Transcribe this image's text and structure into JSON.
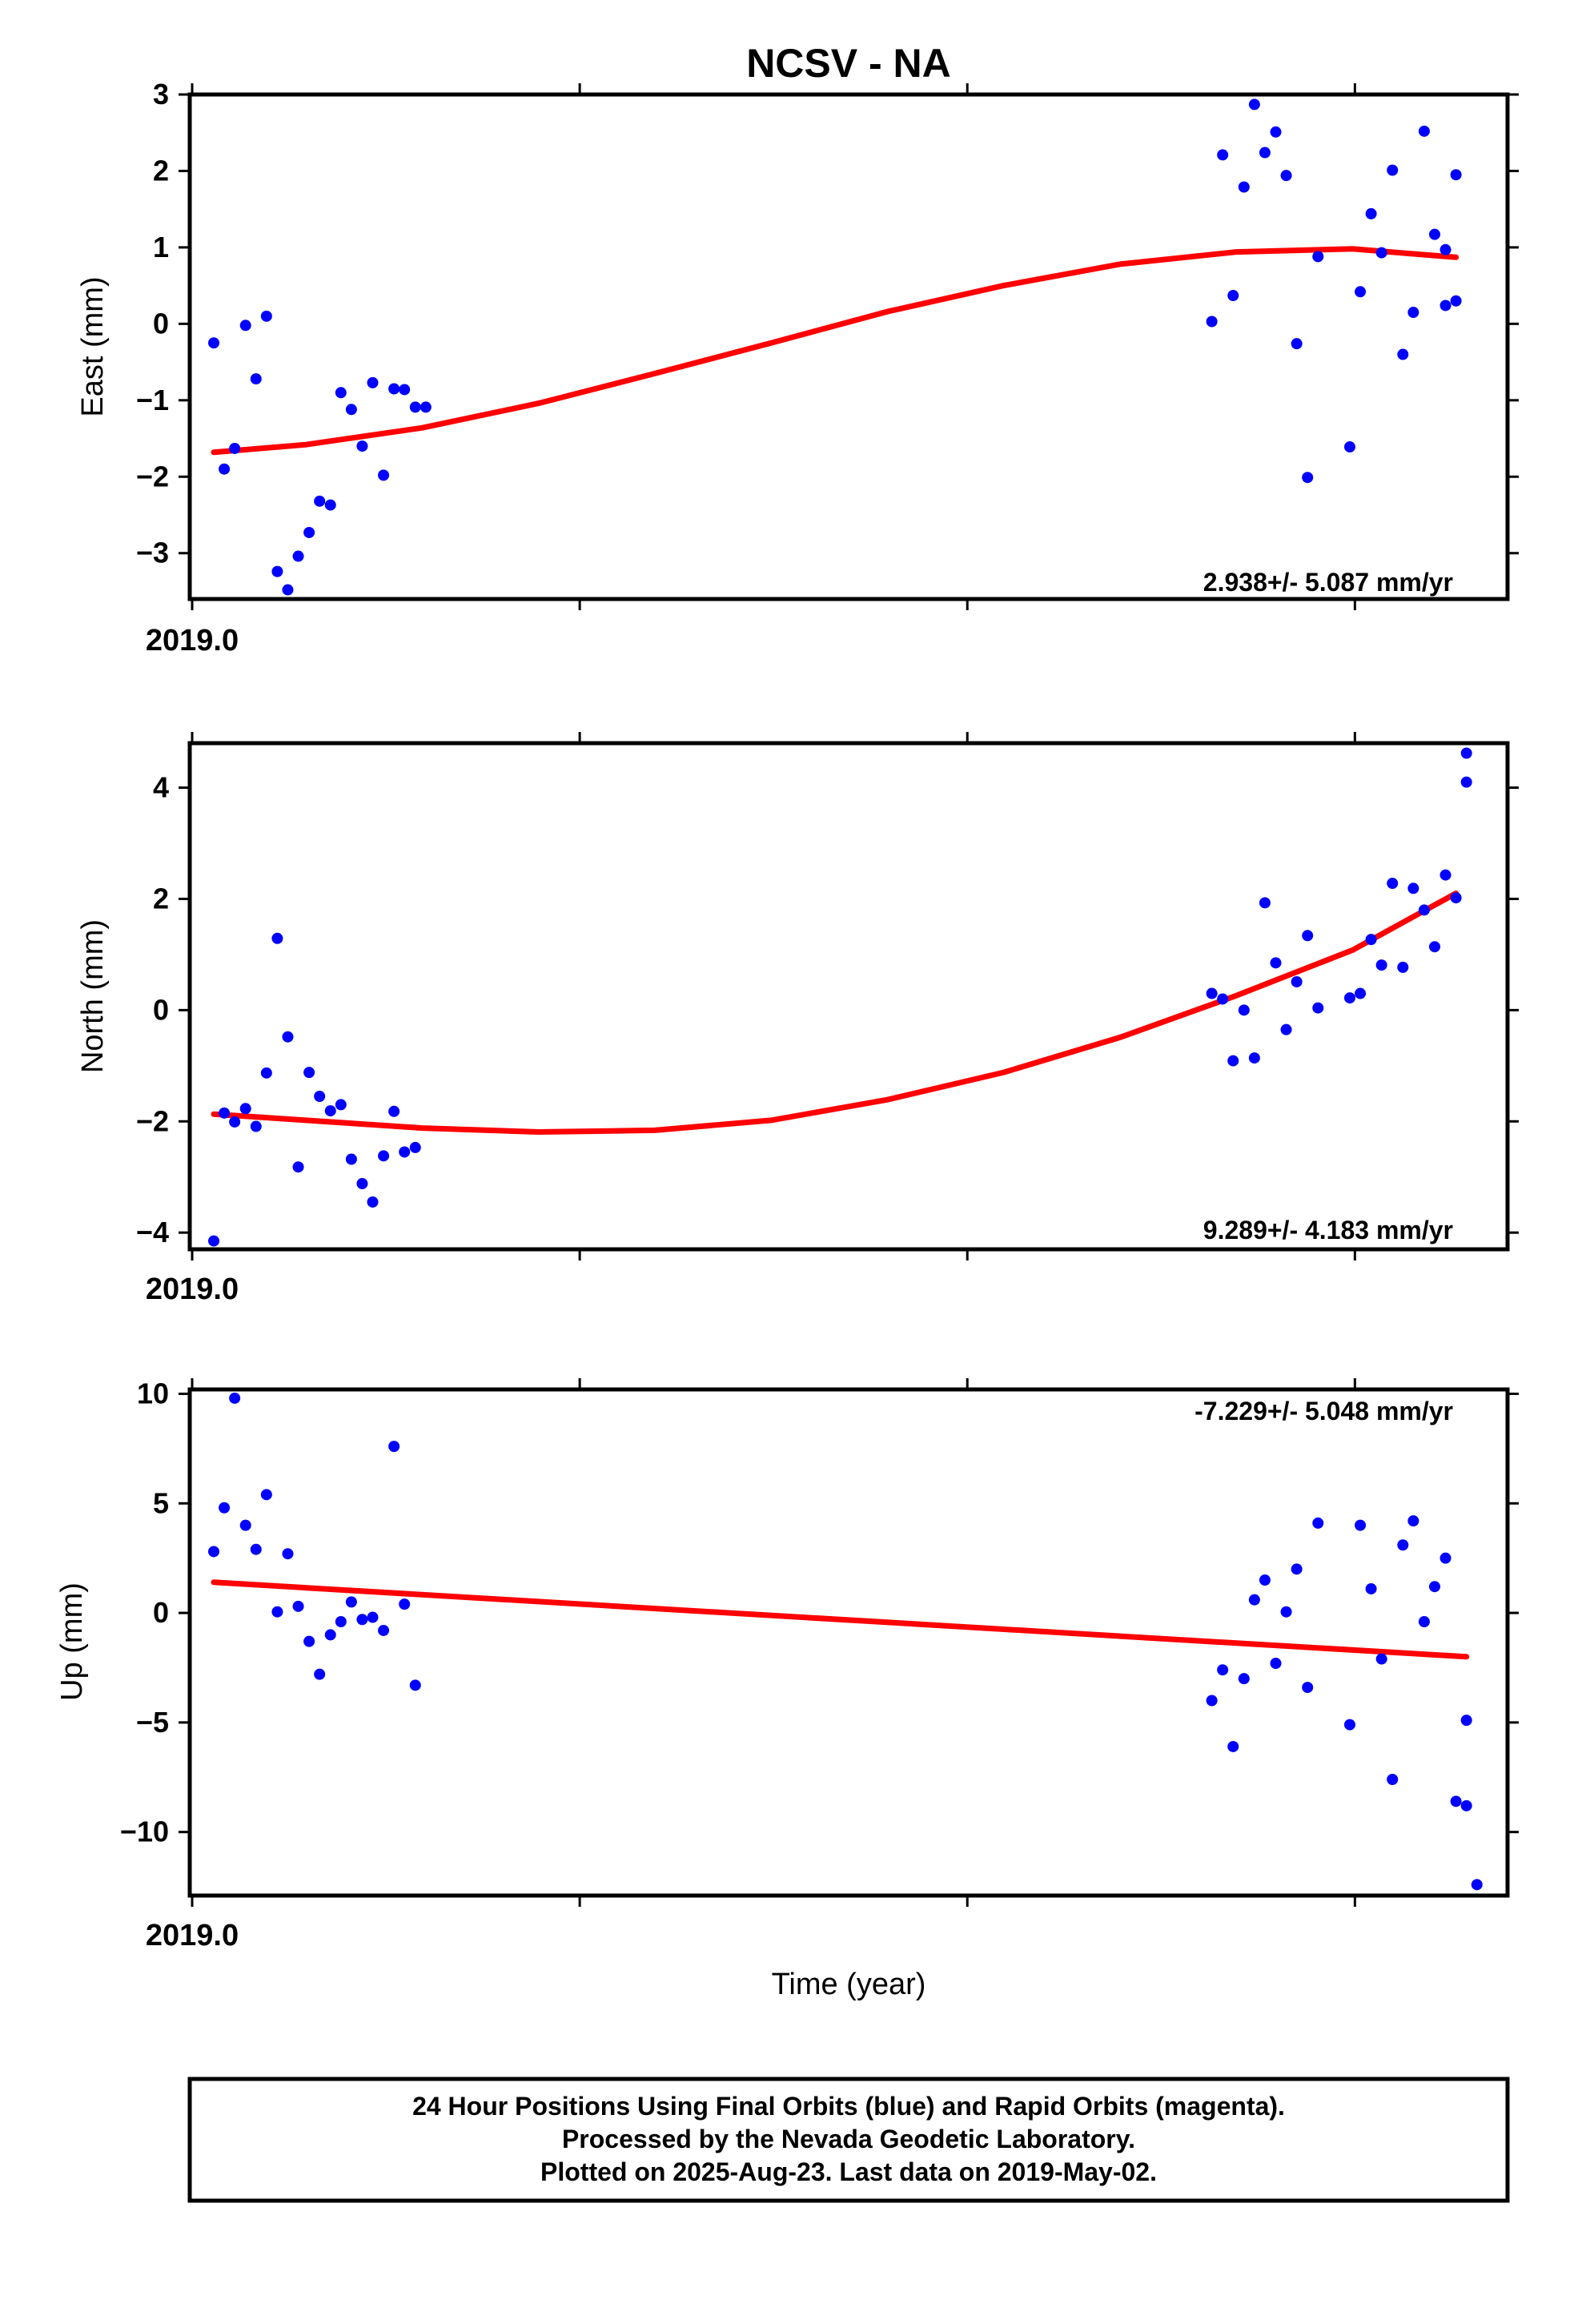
{
  "chart_data": [
    {
      "type": "scatter",
      "panel": "east",
      "title": "NCSV - NA",
      "ylabel": "East (mm)",
      "xlabel": "",
      "ylim": [
        -3.6,
        3.0
      ],
      "yticks": [
        -3,
        -2,
        -1,
        0,
        1,
        2,
        3
      ],
      "xlim": [
        2019.0,
        2019.34
      ],
      "xtick_labels": [
        "2019.0"
      ],
      "rate_text": "2.938+/- 5.087 mm/yr",
      "series": [
        {
          "marker": "dot",
          "color": "#0000ff",
          "x": [
            2019.0062,
            2019.0089,
            2019.0116,
            2019.0144,
            2019.0171,
            2019.0198,
            2019.0226,
            2019.0253,
            2019.028,
            2019.0308,
            2019.0335,
            2019.0363,
            2019.039,
            2019.0417,
            2019.0445,
            2019.0472,
            2019.05,
            2019.0527,
            2019.0554,
            2019.0582,
            2019.0609,
            2019.2637,
            2019.2665,
            2019.2692,
            2019.272,
            2019.2747,
            2019.2774,
            2019.2802,
            2019.2829,
            2019.2856,
            2019.2884,
            2019.2911,
            2019.2993,
            2019.302,
            2019.3048,
            2019.3075,
            2019.3103,
            2019.313,
            2019.3157,
            2019.3185,
            2019.3212,
            2019.324,
            2019.3267
          ],
          "y": [
            -0.25,
            -1.9,
            -1.63,
            -0.02,
            -0.72,
            0.1,
            -3.24,
            -3.48,
            -3.04,
            -2.73,
            -2.32,
            -2.37,
            -0.9,
            -1.12,
            -1.6,
            -0.77,
            -1.98,
            -0.85,
            -0.86,
            -1.09,
            -1.09,
            0.03,
            2.21,
            0.37,
            1.79,
            2.87,
            2.24,
            2.51,
            1.94,
            -0.26,
            -2.01,
            0.88,
            -1.61,
            0.42,
            1.44,
            0.93,
            2.01,
            -0.4,
            0.15,
            2.52,
            1.17,
            0.24,
            1.95
          ]
        },
        {
          "name": "model fit",
          "marker": "line",
          "color": "#ff0000",
          "x": [
            2019.0062,
            2019.03,
            2019.06,
            2019.09,
            2019.12,
            2019.15,
            2019.18,
            2019.21,
            2019.24,
            2019.27,
            2019.3,
            2019.3267
          ],
          "y": [
            -1.68,
            -1.58,
            -1.36,
            -1.04,
            -0.65,
            -0.25,
            0.16,
            0.5,
            0.78,
            0.94,
            0.98,
            0.87
          ]
        }
      ],
      "extra_points": {
        "x": [
          2019.324,
          2019.3267
        ],
        "y": [
          0.97,
          0.3
        ]
      }
    },
    {
      "type": "scatter",
      "panel": "north",
      "ylabel": "North (mm)",
      "xlabel": "",
      "ylim": [
        -4.3,
        4.8
      ],
      "yticks": [
        -4,
        -2,
        0,
        2,
        4
      ],
      "xlim": [
        2019.0,
        2019.34
      ],
      "xtick_labels": [
        "2019.0"
      ],
      "rate_text": "9.289+/- 4.183 mm/yr",
      "series": [
        {
          "marker": "dot",
          "color": "#0000ff",
          "x": [
            2019.0062,
            2019.0089,
            2019.0116,
            2019.0144,
            2019.0171,
            2019.0198,
            2019.0226,
            2019.0253,
            2019.028,
            2019.0308,
            2019.0335,
            2019.0363,
            2019.039,
            2019.0417,
            2019.0445,
            2019.0472,
            2019.05,
            2019.0527,
            2019.0554,
            2019.0582,
            2019.2637,
            2019.2665,
            2019.2692,
            2019.272,
            2019.2747,
            2019.2774,
            2019.2802,
            2019.2829,
            2019.2856,
            2019.2884,
            2019.2911,
            2019.2993,
            2019.302,
            2019.3048,
            2019.3075,
            2019.3103,
            2019.313,
            2019.3157,
            2019.3185,
            2019.3212,
            2019.324,
            2019.3267,
            2019.3294
          ],
          "y": [
            -4.15,
            -1.85,
            -2.01,
            -1.77,
            -2.09,
            -1.13,
            1.29,
            -0.48,
            -2.82,
            -1.12,
            -1.55,
            -1.81,
            -1.7,
            -2.68,
            -3.12,
            -3.45,
            -2.62,
            -1.82,
            -2.55,
            -2.47,
            0.3,
            0.2,
            -0.91,
            0.0,
            -0.86,
            1.93,
            0.85,
            -0.35,
            0.51,
            1.34,
            0.04,
            0.22,
            0.3,
            1.27,
            0.81,
            2.28,
            0.77,
            2.19,
            1.8,
            1.14,
            2.43,
            2.02,
            4.62
          ]
        },
        {
          "name": "model fit",
          "marker": "line",
          "color": "#ff0000",
          "x": [
            2019.0062,
            2019.03,
            2019.06,
            2019.09,
            2019.12,
            2019.15,
            2019.18,
            2019.21,
            2019.24,
            2019.27,
            2019.3,
            2019.3267
          ],
          "y": [
            -1.87,
            -1.98,
            -2.12,
            -2.19,
            -2.16,
            -1.98,
            -1.61,
            -1.12,
            -0.49,
            0.26,
            1.08,
            2.1
          ]
        }
      ],
      "extra_points": {
        "x": [
          2019.3294
        ],
        "y": [
          4.1
        ]
      }
    },
    {
      "type": "scatter",
      "panel": "up",
      "ylabel": "Up (mm)",
      "xlabel": "Time (year)",
      "ylim": [
        -12.9,
        10.2
      ],
      "yticks": [
        -10,
        -5,
        0,
        5,
        10
      ],
      "xlim": [
        2019.0,
        2019.34
      ],
      "xtick_labels": [
        "2019.0"
      ],
      "rate_text": "-7.229+/- 5.048 mm/yr",
      "series": [
        {
          "marker": "dot",
          "color": "#0000ff",
          "x": [
            2019.0062,
            2019.0089,
            2019.0116,
            2019.0144,
            2019.0171,
            2019.0198,
            2019.0226,
            2019.0253,
            2019.028,
            2019.0308,
            2019.0335,
            2019.0363,
            2019.039,
            2019.0417,
            2019.0445,
            2019.0472,
            2019.05,
            2019.0527,
            2019.0554,
            2019.0582,
            2019.2637,
            2019.2665,
            2019.2692,
            2019.272,
            2019.2747,
            2019.2774,
            2019.2802,
            2019.2829,
            2019.2856,
            2019.2884,
            2019.2911,
            2019.2993,
            2019.302,
            2019.3048,
            2019.3075,
            2019.3103,
            2019.313,
            2019.3157,
            2019.3185,
            2019.3212,
            2019.324,
            2019.3267,
            2019.3294
          ],
          "y": [
            2.8,
            4.8,
            9.8,
            4.0,
            2.9,
            5.4,
            0.05,
            2.7,
            0.3,
            -1.3,
            -2.8,
            -1.0,
            -0.4,
            0.5,
            -0.3,
            -0.2,
            -0.8,
            7.6,
            0.4,
            -3.3,
            -4.0,
            -2.6,
            -6.1,
            -3.0,
            0.6,
            1.5,
            -2.3,
            0.05,
            2.0,
            -3.4,
            4.1,
            -5.1,
            4.0,
            1.1,
            -2.1,
            -7.6,
            3.1,
            4.2,
            -0.4,
            1.2,
            2.5,
            -8.6,
            -8.8
          ]
        },
        {
          "name": "model fit",
          "marker": "line",
          "color": "#ff0000",
          "x": [
            2019.0062,
            2019.3294
          ],
          "y": [
            1.4,
            -2.0
          ]
        }
      ],
      "extra_points": {
        "x": [
          2019.3294,
          2019.3321
        ],
        "y": [
          -4.9,
          -12.4
        ]
      }
    }
  ],
  "caption": {
    "lines": [
      "24 Hour Positions Using Final Orbits (blue) and Rapid Orbits (magenta).",
      "Processed by the Nevada Geodetic Laboratory.",
      "Plotted on 2025-Aug-23. Last data on 2019-May-02."
    ]
  }
}
